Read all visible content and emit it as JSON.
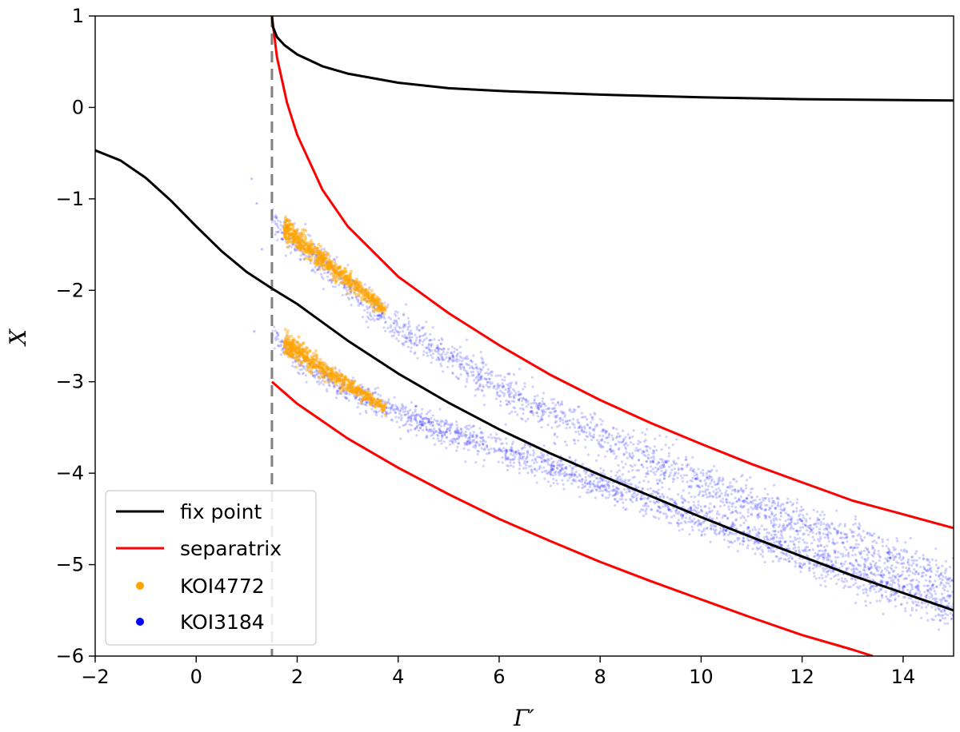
{
  "chart_data": {
    "type": "line",
    "title": "",
    "xlabel": "Γ′",
    "ylabel": "X",
    "xlim": [
      -2,
      15
    ],
    "ylim": [
      -6,
      1
    ],
    "xticks": [
      "−2",
      "0",
      "2",
      "4",
      "6",
      "8",
      "10",
      "12",
      "14"
    ],
    "xtick_values": [
      -2,
      0,
      2,
      4,
      6,
      8,
      10,
      12,
      14
    ],
    "yticks": [
      "1",
      "0",
      "−1",
      "−2",
      "−3",
      "−4",
      "−5",
      "−6"
    ],
    "ytick_values": [
      1,
      0,
      -1,
      -2,
      -3,
      -4,
      -5,
      -6
    ],
    "grid": false,
    "legend_position": "lower-left",
    "vertical_reference_line": {
      "x": 1.5,
      "style": "dashed",
      "color": "#808080"
    },
    "series": [
      {
        "name": "fix point",
        "kind": "line",
        "color": "#000000",
        "segments": [
          {
            "x": [
              -2,
              -1.5,
              -1,
              -0.5,
              0,
              0.5,
              1,
              1.5,
              2,
              3,
              4,
              5,
              6,
              7,
              8,
              9,
              10,
              11,
              12,
              13,
              14,
              15
            ],
            "y": [
              -0.47,
              -0.58,
              -0.77,
              -1.02,
              -1.3,
              -1.57,
              -1.8,
              -1.98,
              -2.15,
              -2.55,
              -2.91,
              -3.23,
              -3.52,
              -3.78,
              -4.02,
              -4.25,
              -4.48,
              -4.7,
              -4.91,
              -5.12,
              -5.31,
              -5.5
            ]
          },
          {
            "x": [
              1.5,
              1.52,
              1.6,
              1.75,
              2,
              2.5,
              3,
              4,
              5,
              6,
              8,
              10,
              12,
              15
            ],
            "y": [
              1.0,
              0.88,
              0.77,
              0.68,
              0.58,
              0.45,
              0.37,
              0.27,
              0.21,
              0.18,
              0.14,
              0.11,
              0.09,
              0.075
            ]
          }
        ]
      },
      {
        "name": "separatrix",
        "kind": "line",
        "color": "#ff0000",
        "segments": [
          {
            "x": [
              1.5,
              1.6,
              1.8,
              2,
              2.5,
              3,
              4,
              5,
              6,
              7,
              8,
              9,
              10,
              11,
              12,
              13,
              14,
              15
            ],
            "y": [
              1.0,
              0.55,
              0.05,
              -0.3,
              -0.9,
              -1.3,
              -1.85,
              -2.25,
              -2.6,
              -2.92,
              -3.2,
              -3.45,
              -3.68,
              -3.9,
              -4.1,
              -4.3,
              -4.45,
              -4.6
            ]
          },
          {
            "x": [
              1.5,
              2,
              3,
              4,
              5,
              6,
              7,
              8,
              9,
              10,
              11,
              12,
              13,
              13.4
            ],
            "y": [
              -3.0,
              -3.24,
              -3.62,
              -3.94,
              -4.23,
              -4.5,
              -4.74,
              -4.97,
              -5.18,
              -5.38,
              -5.58,
              -5.77,
              -5.93,
              -6.0
            ]
          }
        ]
      },
      {
        "name": "KOI4772",
        "kind": "scatter",
        "color": "#ffa500",
        "clusters": [
          {
            "x_start": 1.75,
            "x_end": 3.75,
            "y_start": -1.33,
            "y_end": -2.22,
            "spread": 0.1,
            "count": 700
          },
          {
            "x_start": 1.75,
            "x_end": 3.75,
            "y_start": -2.58,
            "y_end": -3.3,
            "spread": 0.09,
            "count": 600
          }
        ]
      },
      {
        "name": "KOI3184",
        "kind": "scatter",
        "color": "#0000ff",
        "bands": [
          {
            "x": [
              1.5,
              2,
              3,
              4,
              6,
              8,
              10,
              12,
              14,
              15
            ],
            "y": [
              -1.25,
              -1.5,
              -1.95,
              -2.4,
              -3.05,
              -3.6,
              -4.1,
              -4.55,
              -4.98,
              -5.2
            ],
            "spread": 0.12,
            "count": 2000
          },
          {
            "x": [
              1.5,
              2,
              3,
              4,
              6,
              8,
              10,
              12,
              14,
              15
            ],
            "y": [
              -2.5,
              -2.75,
              -3.1,
              -3.35,
              -3.75,
              -4.1,
              -4.5,
              -4.9,
              -5.3,
              -5.5
            ],
            "spread": 0.1,
            "count": 2200
          }
        ]
      }
    ]
  }
}
